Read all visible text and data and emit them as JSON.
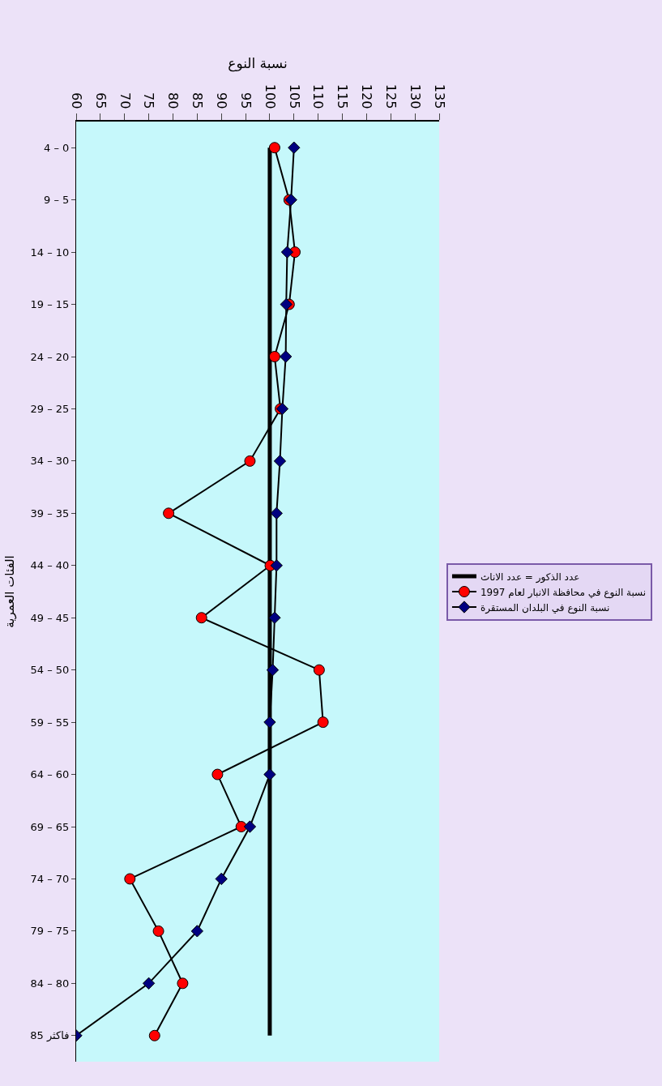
{
  "chart_data": {
    "type": "line",
    "orientation": "horizontal",
    "xlabel": "نسبة النوع",
    "ylabel": "الفئات العمرية",
    "categories": [
      "4 – 0",
      "9 – 5",
      "14 – 10",
      "19 – 15",
      "24 – 20",
      "29 – 25",
      "34 – 30",
      "39 – 35",
      "44 – 40",
      "49 – 45",
      "54 – 50",
      "59 – 55",
      "64 – 60",
      "69 – 65",
      "74 – 70",
      "79 – 75",
      "84 – 80",
      "85 فاكثر"
    ],
    "series": [
      {
        "name": "عدد الذكور = عدد الاناث",
        "color": "#000000",
        "marker": "none",
        "values": [
          100,
          100,
          100,
          100,
          100,
          100,
          100,
          100,
          100,
          100,
          100,
          100,
          100,
          100,
          100,
          100,
          100,
          100
        ]
      },
      {
        "name": "نسبة النوع في البلدان المستقرة",
        "color": "#000080",
        "marker": "diamond",
        "values": [
          105,
          104.4,
          103.6,
          103.4,
          103.3,
          102.6,
          102.1,
          101.4,
          101.4,
          101,
          100.6,
          100,
          100,
          95.9,
          90,
          85,
          75,
          60
        ]
      },
      {
        "name": "نسبة النوع في محافظة الانبار لعام 1997",
        "color": "#ff0000",
        "marker": "circle",
        "values": [
          101,
          104,
          105.2,
          104,
          101,
          102.2,
          95.9,
          79.1,
          100.1,
          85.9,
          110.2,
          111,
          89.2,
          94.1,
          71.1,
          77,
          82,
          76.2
        ]
      }
    ],
    "xlim": [
      60,
      135
    ],
    "xticks": [
      60,
      65,
      70,
      75,
      80,
      85,
      90,
      95,
      100,
      105,
      110,
      115,
      120,
      125,
      130,
      135
    ],
    "grid": false,
    "legend": "right"
  }
}
